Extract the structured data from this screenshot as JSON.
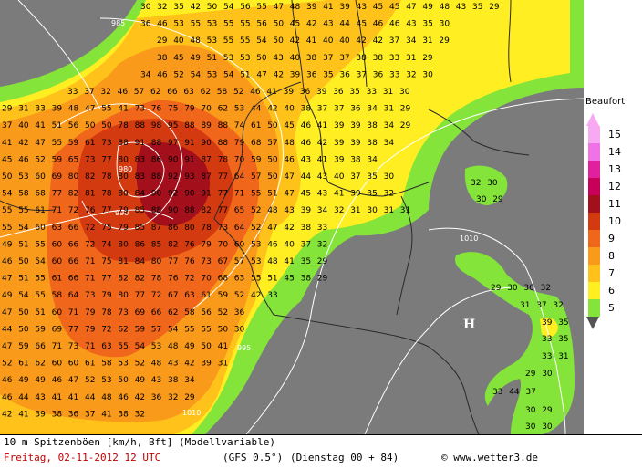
{
  "legend": {
    "title": "Beaufort",
    "levels": [
      {
        "label": "15",
        "color": "#f7a9f2"
      },
      {
        "label": "14",
        "color": "#ef72e6"
      },
      {
        "label": "13",
        "color": "#e0209d"
      },
      {
        "label": "12",
        "color": "#c8005a"
      },
      {
        "label": "11",
        "color": "#a30f1a"
      },
      {
        "label": "10",
        "color": "#d43a10"
      },
      {
        "label": "9",
        "color": "#f0661a"
      },
      {
        "label": "8",
        "color": "#fa9a1a"
      },
      {
        "label": "7",
        "color": "#ffc21a"
      },
      {
        "label": "6",
        "color": "#ffee22"
      },
      {
        "label": "5",
        "color": "#84e43a"
      }
    ]
  },
  "footer": {
    "line1": "10 m Spitzenböen [km/h, Bft] (Modellvariable)",
    "date": "Freitag, 02-11-2012  12 UTC",
    "model": "(GFS 0.5°)",
    "run": "(Dienstag 00 + 84)",
    "copyright": "© www.wetter3.de"
  },
  "map": {
    "isobar_labels": [
      "985",
      "980",
      "990",
      "1010",
      "995",
      "1010"
    ],
    "pressure_marker": "H",
    "colors": {
      "land": "#7b7b7b",
      "border": "#2a2a2a",
      "isobar": "#ffffff"
    },
    "wind_rows": [
      "30 32 35 42 50 54 56 55 47 48 39 41 39 43 45 45 47 49 48 43 35 29",
      "36 46 53 55 53 55 55 56 50 45 42 43 44 45 46 46 43 35 30",
      "29 40 48 53 55 55 54 50 42 41 40 40 42 42 37 34 31 29",
      "38 45 49 51 53 53 50 43 40 38 37 37 38 38 33 31 29",
      "34 46 52 54 53 54 51 47 42 39 36 35 36 37 36 33 32 30",
      "33 37 32 46 57 62 66 63 62 58 52 46 41 39 36 39 36 35 33 31 30",
      "29 31 33 39 48 47 55 41 73 76 75 79 70 62 53 44 42 40 38 37 37 36 34 31 29",
      "37 40 41 51 56 50 50 78 88 98 95 88 89 88 74 61 50 45 46 41 39 39 38 34 29",
      "41 42 47 55 59 61 73 88 91 88 97 91 90 88 79 68 57 48 46 42 39 39 38 34",
      "45 46 52 59 65 73 77 80 83 86 90 91 87 78 70 59 50 46 43 41 39 38 34",
      "50 53 60 69 80 82 78 80 83 88 92 93 87 77 64 57 50 47 44 43 40 37 35 30",
      "54 58 68 77 82 81 78 80 84 90 92 90 91 77 71 55 51 47 45 43 41 39 35 32",
      "55 55 61 71 72 76 77 79 85 88 90 88 82 77 65 52 48 43 39 34 32 31 30 31 31",
      "55 54 60 63 66 72 75 79 85 87 86 80 78 73 64 52 47 42 38 33",
      "49 51 55 60 66 72 74 80 86 85 82 76 79 70 60 53 46 40 37 32",
      "46 50 54 60 66 71 75 81 84 80 77 76 73 67 57 53 48 41 35 29",
      "47 51 55 61 66 71 77 82 82 78 76 72 70 68 63 55 51 45 38 29",
      "49 54 55 58 64 73 79 80 77 72 67 63 61 59 52 42 33",
      "47 50 51 60 71 79 78 73 69 66 62 58 56 52 36",
      "44 50 59 69 77 79 72 62 59 57 54 55 55 50 30",
      "47 59 66 71 73 71 63 55 54 53 48 49 50 41",
      "52 61 62 60 60 61 58 53 52 48 43 42 39 31",
      "46 49 49 46 47 52 53 50 49 43 38 34",
      "46 44 43 41 41 44 48 46 42 36 32 29",
      "42 41 39 38 36 37 41 38 32"
    ],
    "east_rows": [
      "32 30",
      "30 29",
      "29 30 30 32",
      "31 37 32",
      "39 35",
      "33 35",
      "33 31",
      "29 30",
      "33 44 37",
      "30 29",
      "30 30"
    ]
  }
}
